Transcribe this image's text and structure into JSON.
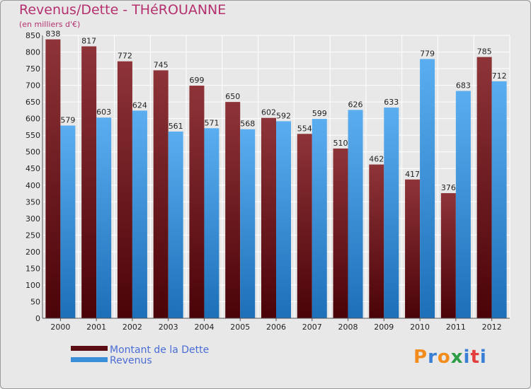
{
  "chart_data": {
    "type": "bar",
    "title": "Revenus/Dette - THéROUANNE",
    "subtitle": "(en milliers d'€)",
    "categories": [
      "2000",
      "2001",
      "2002",
      "2003",
      "2004",
      "2005",
      "2006",
      "2007",
      "2008",
      "2009",
      "2010",
      "2011",
      "2012"
    ],
    "series": [
      {
        "name": "Montant de la Dette",
        "color": "#7a1e22",
        "values": [
          838,
          817,
          772,
          745,
          699,
          650,
          602,
          554,
          510,
          462,
          417,
          376,
          785
        ]
      },
      {
        "name": "Revenus",
        "color": "#4aa3e6",
        "values": [
          579,
          603,
          624,
          561,
          571,
          568,
          592,
          599,
          626,
          633,
          779,
          683,
          712
        ]
      }
    ],
    "ylim": [
      0,
      850
    ],
    "yticks": [
      0,
      50,
      100,
      150,
      200,
      250,
      300,
      350,
      400,
      450,
      500,
      550,
      600,
      650,
      700,
      750,
      800,
      850
    ],
    "grid": true,
    "legend": "bottom-left"
  },
  "logo": {
    "text": "Proxiti",
    "letters": [
      "P",
      "r",
      "o",
      "x",
      "i",
      "t",
      "i"
    ],
    "colors": [
      "#f28c1c",
      "#3a7fd6",
      "#f28c1c",
      "#2a9d45",
      "#3a7fd6",
      "#e43d3d",
      "#3a7fd6"
    ]
  }
}
